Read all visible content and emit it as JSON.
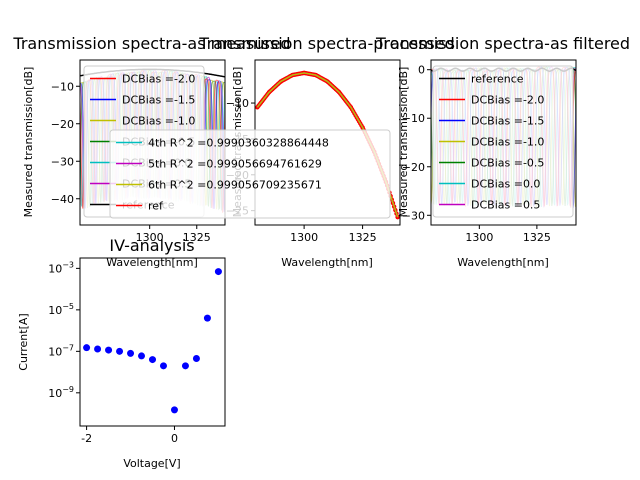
{
  "chart_data": [
    {
      "id": "p1",
      "type": "line",
      "title": "Transmission spectra-as measured",
      "xlabel": "Wavelength[nm]",
      "ylabel": "Measured transmission[dB]",
      "xlim": [
        1263,
        1340
      ],
      "ylim": [
        -47,
        -3
      ],
      "xticks": [
        1300,
        1325
      ],
      "yticks": [
        -10,
        -20,
        -30,
        -40
      ],
      "legend_position": "upper-left",
      "series": [
        {
          "name": "DCBias =-2.0",
          "color": "#ff0000"
        },
        {
          "name": "DCBias =-1.5",
          "color": "#0000ff"
        },
        {
          "name": "DCBias =-1.0",
          "color": "#bfbf00"
        },
        {
          "name": "DCBias =-0.5",
          "color": "#008000"
        },
        {
          "name": "DCBias =0.0",
          "color": "#00bfbf"
        },
        {
          "name": "DCBias =0.5",
          "color": "#bf00bf"
        },
        {
          "name": "reference",
          "color": "#000000"
        }
      ]
    },
    {
      "id": "p2",
      "type": "line",
      "title": "Transmission spectra-processed",
      "xlabel": "Wavelength[nm]",
      "ylabel": "Measured transmission[dB]",
      "xlim": [
        1279,
        1341
      ],
      "ylim": [
        -27,
        -4
      ],
      "xticks": [
        1300,
        1325
      ],
      "yticks": [
        -10,
        -15,
        -20,
        -25
      ],
      "series": [
        {
          "name": "ref",
          "color": "#ff0000",
          "x": [
            1280,
            1285,
            1290,
            1295,
            1300,
            1305,
            1310,
            1315,
            1320,
            1325,
            1330,
            1335,
            1340
          ],
          "y": [
            -10.6,
            -8.5,
            -7.0,
            -6.1,
            -5.8,
            -6.1,
            -7.0,
            -8.5,
            -10.6,
            -13.4,
            -16.8,
            -21.0,
            -25.9
          ]
        },
        {
          "name": "4th  R^2 =0.9990360328864448",
          "color": "#00bfbf"
        },
        {
          "name": "5th  R^2 =0.999056694761629",
          "color": "#bf00bf"
        },
        {
          "name": "6th  R^2 =0.999056709235671",
          "color": "#bfbf00"
        }
      ]
    },
    {
      "id": "p3",
      "type": "line",
      "title": "Transmission spectra-as filtered",
      "xlabel": "Wavelength[nm]",
      "ylabel": "Measured transmission[dB]",
      "xlim": [
        1279,
        1342
      ],
      "ylim": [
        -32,
        2
      ],
      "xticks": [
        1300,
        1325
      ],
      "yticks": [
        0,
        -10,
        -20,
        -30
      ],
      "legend_position": "upper-left",
      "series": [
        {
          "name": "reference",
          "color": "#000000"
        },
        {
          "name": "DCBias =-2.0",
          "color": "#ff0000"
        },
        {
          "name": "DCBias =-1.5",
          "color": "#0000ff"
        },
        {
          "name": "DCBias =-1.0",
          "color": "#bfbf00"
        },
        {
          "name": "DCBias =-0.5",
          "color": "#008000"
        },
        {
          "name": "DCBias =0.0",
          "color": "#00bfbf"
        },
        {
          "name": "DCBias =0.5",
          "color": "#bf00bf"
        }
      ]
    },
    {
      "id": "p4",
      "type": "scatter",
      "title": "IV-analysis",
      "xlabel": "Voltage[V]",
      "ylabel": "Current[A]",
      "yscale": "log",
      "xlim": [
        -2.15,
        1.15
      ],
      "ylim_log10": [
        -10.6,
        -2.5
      ],
      "xticks": [
        -2,
        0
      ],
      "yticks_log10": [
        -9,
        -7,
        -5,
        -3
      ],
      "ytick_labels": [
        "10",
        "10",
        "10",
        "10"
      ],
      "ytick_exponents": [
        "−9",
        "−7",
        "−5",
        "−3"
      ],
      "series": [
        {
          "name": "",
          "color": "#0000ff",
          "x": [
            -2.0,
            -1.75,
            -1.5,
            -1.25,
            -1.0,
            -0.75,
            -0.5,
            -0.25,
            0.0,
            0.25,
            0.5,
            0.75,
            1.0
          ],
          "y": [
            1.5e-07,
            1.3e-07,
            1.15e-07,
            1e-07,
            8e-08,
            6e-08,
            4e-08,
            2e-08,
            1.5e-10,
            2e-08,
            4.5e-08,
            4e-06,
            0.0007
          ]
        }
      ]
    }
  ]
}
